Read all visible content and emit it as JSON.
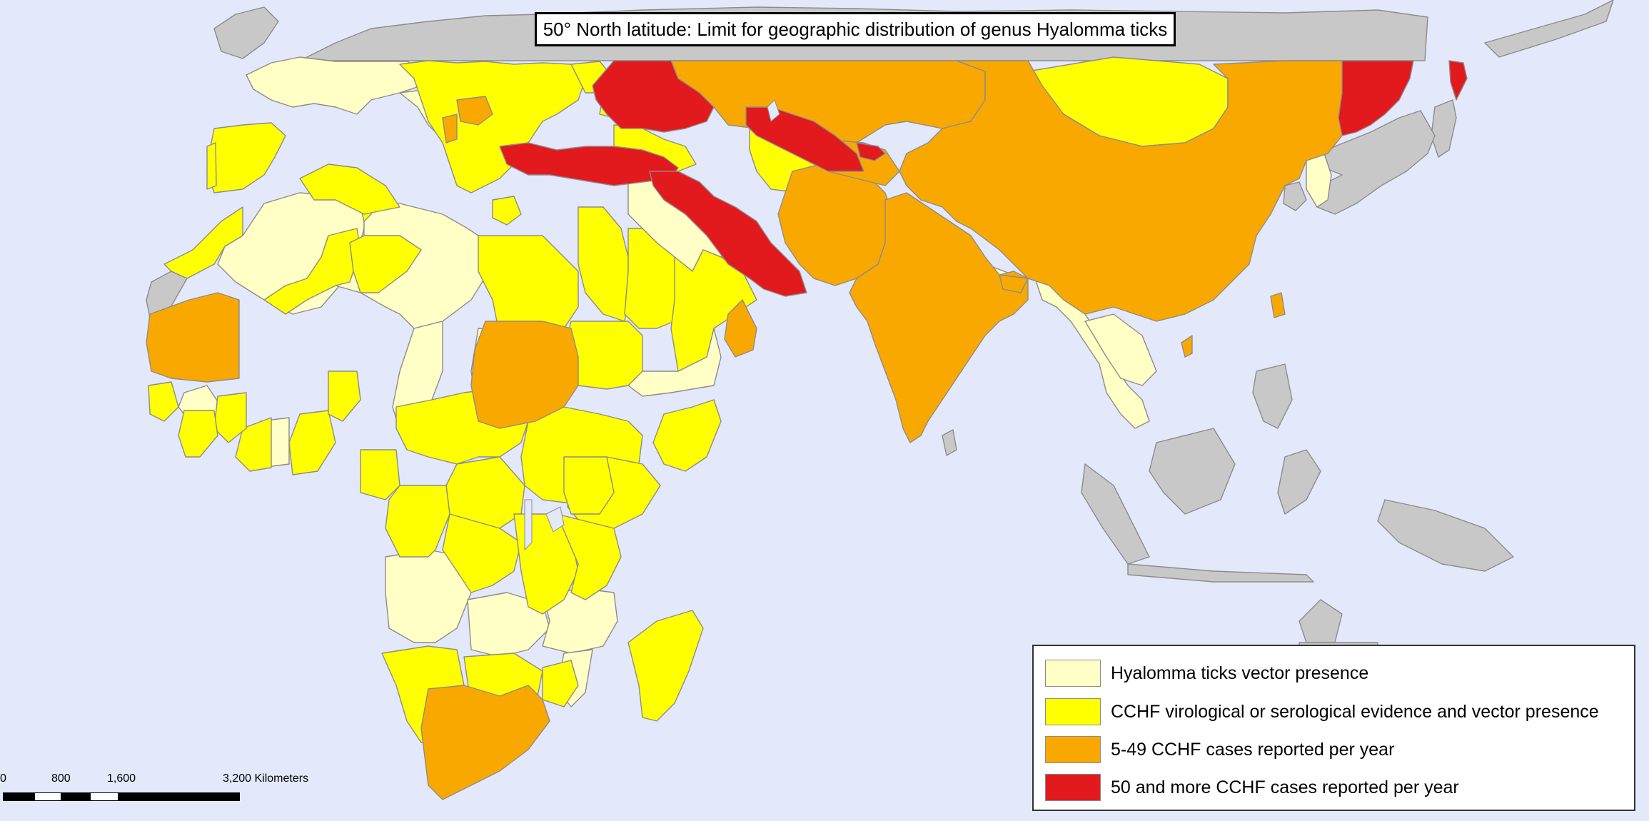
{
  "map": {
    "title": "50° North latitude: Limit for geographic distribution of genus Hyalomma ticks",
    "colors": {
      "ocean": "#e3e8fb",
      "no_data": "#c8c8c8",
      "vector_presence": "#ffffc6",
      "evidence": "#ffff00",
      "cases_5_49": "#f9a800",
      "cases_50_plus": "#e2191d"
    },
    "legend": {
      "items": [
        {
          "label": "Hyalomma ticks vector presence",
          "color": "#ffffc6"
        },
        {
          "label": "CCHF virological or serological evidence and vector presence",
          "color": "#ffff00"
        },
        {
          "label": "5-49 CCHF cases reported per year",
          "color": "#f9a800"
        },
        {
          "label": "50 and more CCHF cases reported per year",
          "color": "#e2191d"
        }
      ]
    },
    "scale_bar": {
      "ticks": [
        "0",
        "800",
        "1,600",
        "3,200 Kilometers"
      ]
    }
  }
}
